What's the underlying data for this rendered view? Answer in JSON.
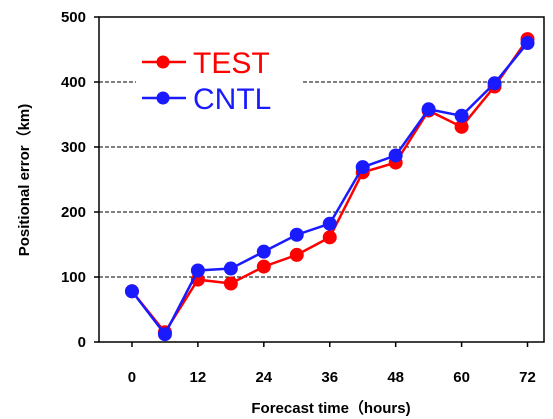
{
  "chart_data": {
    "type": "line",
    "xlabel": "Forecast time（hours)",
    "ylabel": "Positional error（km)",
    "x": [
      0,
      6,
      12,
      18,
      24,
      30,
      36,
      42,
      48,
      54,
      60,
      66,
      72
    ],
    "xticks": [
      0,
      12,
      24,
      36,
      48,
      60,
      72
    ],
    "yticks": [
      0,
      100,
      200,
      300,
      400,
      500
    ],
    "xlim": [
      -6,
      75
    ],
    "ylim": [
      0,
      500
    ],
    "grid": "horizontal dashed",
    "legend_position": "top-left",
    "series": [
      {
        "name": "TEST",
        "color": "#ff0000",
        "values": [
          78,
          15,
          96,
          90,
          116,
          134,
          161,
          261,
          276,
          356,
          331,
          393,
          466
        ]
      },
      {
        "name": "CNTL",
        "color": "#1a1aff",
        "values": [
          78,
          12,
          110,
          113,
          139,
          165,
          182,
          269,
          287,
          358,
          348,
          398,
          460
        ]
      }
    ]
  }
}
